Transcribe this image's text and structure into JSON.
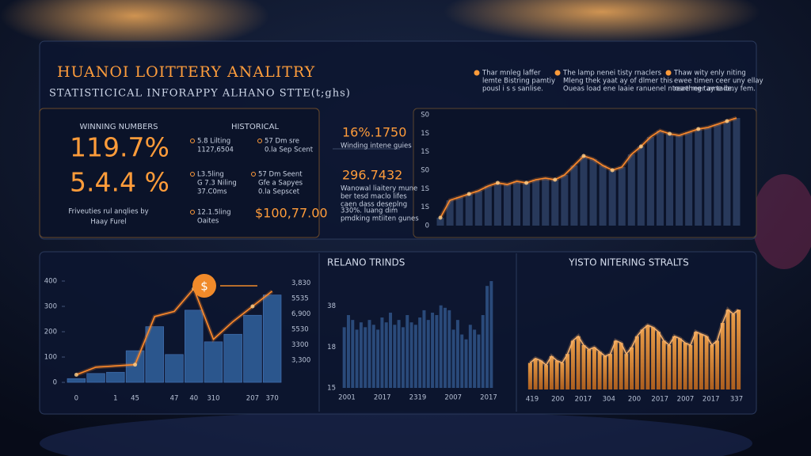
{
  "header": {
    "title": "HUANOI LOITTERY ANALITRY",
    "subtitle": "STATISTICICAL INFORAPPY ALHANO STTE(t;ghs)"
  },
  "legend": [
    [
      "Thar mnleg laffer",
      "lemte Bistring pamtiy",
      "pousl i s s sanlise."
    ],
    [
      "The lamp nenei tisty rnaclers",
      "Mleng thek yaat ay of dlmer this",
      "Oueas load ene laaie ranuenel ntoarthng tay tade."
    ],
    [
      "Thaw wity enly niting",
      "ewee timen ceer uny ellay",
      "reae reer ame lony fem."
    ]
  ],
  "summary": {
    "left_heading": "WINNING NUMBERS",
    "right_heading": "HISTORICAL",
    "big": [
      "119.7%",
      "5.4.4 %"
    ],
    "caption": [
      "Friveuties rul anqlies by",
      "Haay Furel"
    ],
    "items": [
      [
        "5.8 Lilting",
        "1127,6504"
      ],
      [
        "57 Dm sre",
        "0.la Sep Scent"
      ],
      [
        "L3.5ling",
        "G 7.3 Niling",
        "37.C0ms"
      ],
      [
        "57 Dm Seent",
        "Gfe a Sapyes",
        "0.la Sepscet"
      ],
      [
        "12.1.5ling",
        "Oaites"
      ]
    ],
    "amount": "$100,77.00"
  },
  "highlights": [
    {
      "value": "16%.1750",
      "label": [
        "Winding intene guies"
      ]
    },
    {
      "value": "296.7432",
      "label": [
        "Wanowal liaitery mune",
        "ber tesd maclo lifes",
        "caen dass deseplng"
      ]
    },
    {
      "value": null,
      "label": [
        "330%. luang dim",
        "pmdking mtiiten gunes"
      ]
    }
  ],
  "charts": [
    {
      "type": "bar-line",
      "ylabels": [
        "0",
        "1S",
        "1S",
        "S0",
        "1S",
        "1S",
        "S0"
      ],
      "ylim": [
        0,
        70
      ],
      "values": [
        5,
        16,
        18,
        20,
        22,
        25,
        27,
        26,
        28,
        27,
        29,
        30,
        29,
        32,
        38,
        44,
        42,
        38,
        35,
        37,
        45,
        50,
        56,
        60,
        58,
        57,
        59,
        61,
        62,
        64,
        66,
        68
      ],
      "bar_color": "#2a3b5e",
      "line_color": "#ff8a2a"
    },
    {
      "type": "bar-line",
      "badge": "$",
      "ylim": [
        0,
        400
      ],
      "yticks": [
        0,
        100,
        200,
        300,
        400
      ],
      "y2labels": [
        "3,300",
        "3300",
        "5530",
        "6,900",
        "5535",
        "3,830"
      ],
      "categories": [
        "0",
        null,
        "1",
        "45",
        null,
        "47",
        "40",
        "310",
        null,
        "207",
        "370"
      ],
      "values": [
        15,
        35,
        40,
        125,
        220,
        110,
        285,
        160,
        190,
        265,
        345
      ],
      "line_values": [
        30,
        60,
        65,
        70,
        260,
        280,
        370,
        170,
        240,
        300,
        360
      ],
      "bar_color": "#2d5a93",
      "line_color": "#ff8a2a"
    },
    {
      "type": "bar",
      "title": "RELANO TRINDS",
      "ylabels": [
        "15",
        "18",
        "38"
      ],
      "ylim": [
        0,
        45
      ],
      "xlabels": [
        "2001",
        "2017",
        "2319",
        "2007",
        "2017"
      ],
      "values": [
        25,
        30,
        28,
        24,
        27,
        25,
        28,
        26,
        24,
        29,
        27,
        31,
        26,
        28,
        25,
        30,
        27,
        26,
        29,
        32,
        28,
        31,
        30,
        34,
        33,
        32,
        24,
        28,
        22,
        20,
        26,
        24,
        22,
        30,
        42,
        44
      ],
      "bar_color": "#2c4d7e"
    },
    {
      "type": "bar-line",
      "title": "YISTO NITERING STRALTS",
      "ylim": [
        0,
        50
      ],
      "xlabels": [
        "419",
        "200",
        "2017",
        "304",
        "200",
        "2017",
        "2007",
        "2017",
        "337"
      ],
      "values": [
        12,
        14,
        13,
        11,
        15,
        13,
        12,
        16,
        22,
        24,
        20,
        18,
        19,
        17,
        15,
        16,
        22,
        21,
        16,
        19,
        24,
        27,
        29,
        28,
        26,
        22,
        20,
        24,
        23,
        21,
        20,
        26,
        25,
        24,
        20,
        22,
        30,
        36,
        34,
        36
      ],
      "bar_color": "url(#orangebar)",
      "line_color": "#f5b06a"
    }
  ]
}
